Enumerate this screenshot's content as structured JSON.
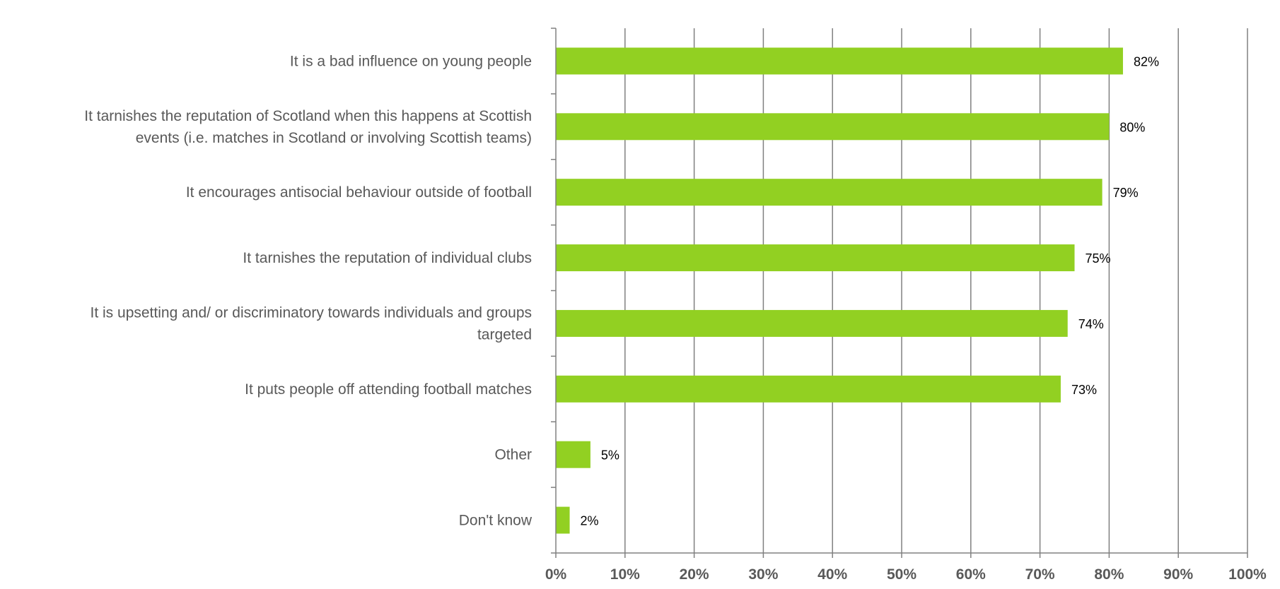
{
  "chart_data": {
    "type": "bar",
    "orientation": "horizontal",
    "categories": [
      "It is a bad influence on young people",
      "It tarnishes the reputation of Scotland when this happens at Scottish events (i.e. matches in Scotland or involving Scottish teams)",
      "It encourages antisocial behaviour outside of football",
      "It tarnishes the reputation of individual clubs",
      "It is upsetting and/ or discriminatory towards individuals and groups targeted",
      "It puts people off attending football matches",
      "Other",
      "Don't know"
    ],
    "category_lines": [
      [
        "It is a bad influence on young people"
      ],
      [
        "It tarnishes the reputation of Scotland when this happens at Scottish",
        "events (i.e. matches in Scotland or involving Scottish teams)"
      ],
      [
        "It encourages antisocial behaviour outside of football"
      ],
      [
        "It tarnishes the reputation of individual clubs"
      ],
      [
        "It is upsetting and/ or discriminatory towards individuals and groups",
        "targeted"
      ],
      [
        "It puts people off attending football matches"
      ],
      [
        "Other"
      ],
      [
        "Don't know"
      ]
    ],
    "values": [
      82,
      80,
      79,
      75,
      74,
      73,
      5,
      2
    ],
    "value_labels": [
      "82%",
      "80%",
      "79%",
      "75%",
      "74%",
      "73%",
      "5%",
      "2%"
    ],
    "xlim": [
      0,
      100
    ],
    "x_ticks": [
      0,
      10,
      20,
      30,
      40,
      50,
      60,
      70,
      80,
      90,
      100
    ],
    "x_tick_labels": [
      "0%",
      "10%",
      "20%",
      "30%",
      "40%",
      "50%",
      "60%",
      "70%",
      "80%",
      "90%",
      "100%"
    ],
    "title": "",
    "xlabel": "",
    "ylabel": "",
    "grid": "vertical",
    "legend": "none",
    "colors": {
      "bar": "#92d022",
      "grid": "#808080",
      "axis": "#808080",
      "category_text": "#595959",
      "value_text": "#000000",
      "tick_text": "#595959"
    }
  }
}
